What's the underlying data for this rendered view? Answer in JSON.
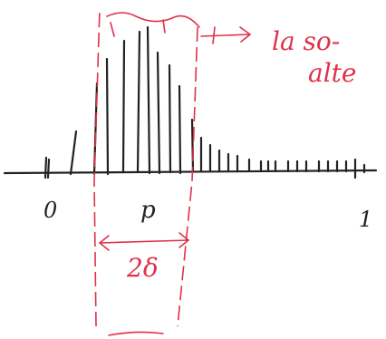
{
  "labels": {
    "origin": "0",
    "p": "p",
    "one": "1"
  },
  "annotations": {
    "note_line1": "la so-",
    "note_line2": "alte",
    "width": "2δ"
  }
}
